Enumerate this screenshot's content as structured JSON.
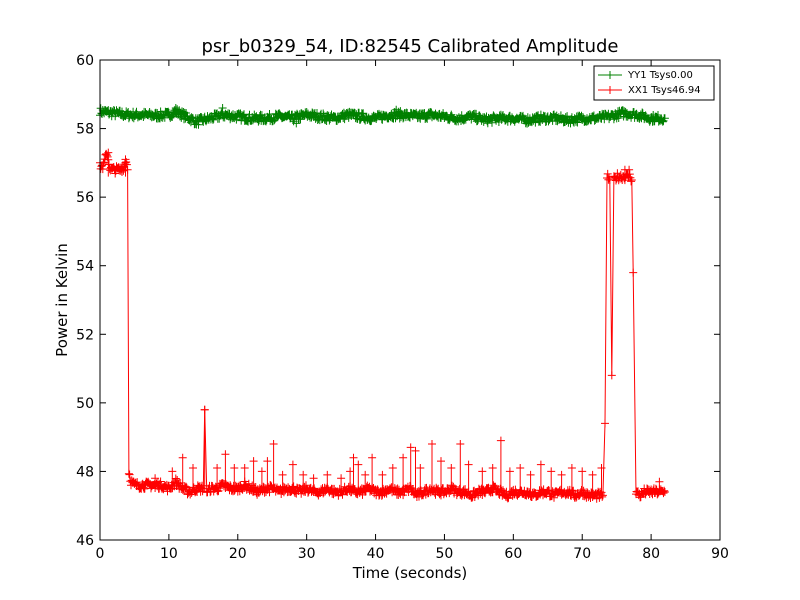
{
  "chart_data": {
    "type": "line",
    "title": "psr_b0329_54, ID:82545 Calibrated Amplitude",
    "xlabel": "Time (seconds)",
    "ylabel": "Power in Kelvin",
    "xlim": [
      0,
      90
    ],
    "ylim": [
      46,
      60
    ],
    "xticks": [
      0,
      10,
      20,
      30,
      40,
      50,
      60,
      70,
      80,
      90
    ],
    "yticks": [
      46,
      48,
      50,
      52,
      54,
      56,
      58,
      60
    ],
    "grid": false,
    "legend_position": "top-right",
    "marker": "+",
    "series": [
      {
        "name": "YY1 Tsys0.00",
        "color": "#008000",
        "x": [
          0,
          2,
          4,
          6,
          8,
          10,
          11,
          12,
          14,
          16,
          18,
          20,
          22,
          24,
          26,
          28,
          30,
          32,
          34,
          36,
          38,
          40,
          42,
          44,
          46,
          48,
          50,
          52,
          54,
          56,
          58,
          60,
          62,
          64,
          66,
          68,
          70,
          72,
          74,
          76,
          78,
          80,
          82
        ],
        "y": [
          58.5,
          58.45,
          58.4,
          58.4,
          58.38,
          58.4,
          58.5,
          58.4,
          58.2,
          58.3,
          58.4,
          58.35,
          58.3,
          58.3,
          58.35,
          58.3,
          58.4,
          58.35,
          58.3,
          58.4,
          58.35,
          58.3,
          58.4,
          58.4,
          58.35,
          58.4,
          58.35,
          58.3,
          58.35,
          58.25,
          58.3,
          58.3,
          58.25,
          58.3,
          58.3,
          58.25,
          58.3,
          58.3,
          58.35,
          58.45,
          58.4,
          58.3,
          58.3
        ]
      },
      {
        "name": "XX1 Tsys46.94",
        "color": "#ff0000",
        "x": [
          0,
          0.5,
          1,
          1.5,
          2,
          2.5,
          3,
          3.5,
          3.8,
          4,
          4.2,
          4.5,
          5,
          6,
          7,
          8,
          9,
          10,
          11,
          12,
          13,
          14,
          15,
          15.2,
          15.5,
          16,
          17,
          18,
          19,
          20,
          21,
          22,
          23,
          24,
          25,
          26,
          27,
          28,
          29,
          30,
          31,
          32,
          33,
          34,
          35,
          36,
          37,
          38,
          39,
          40,
          41,
          42,
          43,
          44,
          45,
          46,
          47,
          48,
          49,
          50,
          51,
          52,
          53,
          54,
          55,
          56,
          57,
          58,
          59,
          60,
          61,
          62,
          63,
          64,
          65,
          66,
          67,
          68,
          69,
          70,
          71,
          72,
          73,
          73.3,
          73.6,
          74,
          74.3,
          74.6,
          75,
          76,
          77,
          77.2,
          77.4,
          77.8,
          78.5,
          79,
          80,
          81,
          82
        ],
        "y": [
          56.9,
          56.9,
          57.3,
          56.8,
          56.8,
          56.8,
          56.8,
          56.9,
          57.1,
          56.8,
          48.0,
          47.7,
          47.6,
          47.6,
          47.6,
          47.6,
          47.6,
          47.5,
          47.7,
          47.5,
          47.4,
          47.5,
          47.5,
          49.8,
          47.4,
          47.5,
          47.5,
          47.6,
          47.5,
          47.5,
          47.6,
          47.5,
          47.4,
          47.5,
          47.5,
          47.4,
          47.5,
          47.5,
          47.4,
          47.5,
          47.4,
          47.4,
          47.5,
          47.4,
          47.4,
          47.5,
          47.4,
          47.4,
          47.5,
          47.4,
          47.4,
          47.5,
          47.4,
          47.4,
          47.5,
          47.3,
          47.4,
          47.5,
          47.4,
          47.4,
          47.5,
          47.4,
          47.4,
          47.3,
          47.4,
          47.4,
          47.5,
          47.4,
          47.3,
          47.4,
          47.4,
          47.4,
          47.3,
          47.4,
          47.4,
          47.3,
          47.4,
          47.4,
          47.3,
          47.4,
          47.3,
          47.3,
          47.3,
          49.4,
          56.6,
          56.5,
          50.8,
          56.5,
          56.6,
          56.6,
          56.6,
          56.5,
          53.8,
          47.4,
          47.3,
          47.4,
          47.4,
          47.4,
          47.4
        ]
      }
    ],
    "spikes": [
      {
        "x": 1.2,
        "y": 57.3
      },
      {
        "x": 3.7,
        "y": 57.1
      },
      {
        "x": 8,
        "y": 47.8
      },
      {
        "x": 10.5,
        "y": 48.0
      },
      {
        "x": 12,
        "y": 48.4
      },
      {
        "x": 13.5,
        "y": 48.1
      },
      {
        "x": 15.2,
        "y": 49.8
      },
      {
        "x": 17,
        "y": 48.1
      },
      {
        "x": 18.2,
        "y": 48.5
      },
      {
        "x": 19.5,
        "y": 48.1
      },
      {
        "x": 21,
        "y": 48.1
      },
      {
        "x": 22.3,
        "y": 48.3
      },
      {
        "x": 23.5,
        "y": 48.0
      },
      {
        "x": 24.3,
        "y": 48.3
      },
      {
        "x": 25.2,
        "y": 48.8
      },
      {
        "x": 26.5,
        "y": 47.9
      },
      {
        "x": 28,
        "y": 48.2
      },
      {
        "x": 29.5,
        "y": 47.9
      },
      {
        "x": 31,
        "y": 47.8
      },
      {
        "x": 33,
        "y": 47.9
      },
      {
        "x": 35,
        "y": 47.8
      },
      {
        "x": 36.3,
        "y": 48.0
      },
      {
        "x": 36.8,
        "y": 48.4
      },
      {
        "x": 37.5,
        "y": 48.2
      },
      {
        "x": 38.5,
        "y": 47.9
      },
      {
        "x": 39.5,
        "y": 48.4
      },
      {
        "x": 41,
        "y": 47.9
      },
      {
        "x": 42.5,
        "y": 48.1
      },
      {
        "x": 44,
        "y": 48.4
      },
      {
        "x": 45.1,
        "y": 48.7
      },
      {
        "x": 45.8,
        "y": 48.6
      },
      {
        "x": 46.5,
        "y": 48.1
      },
      {
        "x": 48.2,
        "y": 48.8
      },
      {
        "x": 49.5,
        "y": 48.3
      },
      {
        "x": 51,
        "y": 48.1
      },
      {
        "x": 52.3,
        "y": 48.8
      },
      {
        "x": 53.5,
        "y": 48.2
      },
      {
        "x": 55.5,
        "y": 48.0
      },
      {
        "x": 57,
        "y": 48.1
      },
      {
        "x": 58.2,
        "y": 48.9
      },
      {
        "x": 59.5,
        "y": 48.0
      },
      {
        "x": 61,
        "y": 48.1
      },
      {
        "x": 62.5,
        "y": 47.9
      },
      {
        "x": 64,
        "y": 48.2
      },
      {
        "x": 65.5,
        "y": 48.0
      },
      {
        "x": 67,
        "y": 47.9
      },
      {
        "x": 68.5,
        "y": 48.1
      },
      {
        "x": 70,
        "y": 48.0
      },
      {
        "x": 71.5,
        "y": 47.9
      },
      {
        "x": 72.8,
        "y": 48.1
      },
      {
        "x": 76.2,
        "y": 56.8
      },
      {
        "x": 76.8,
        "y": 56.8
      },
      {
        "x": 81.2,
        "y": 47.7
      },
      {
        "x": 11.0,
        "y": 58.6
      },
      {
        "x": 17.8,
        "y": 58.6
      },
      {
        "x": 28.5,
        "y": 58.15
      },
      {
        "x": 43,
        "y": 58.55
      },
      {
        "x": 76.5,
        "y": 58.45
      }
    ]
  }
}
